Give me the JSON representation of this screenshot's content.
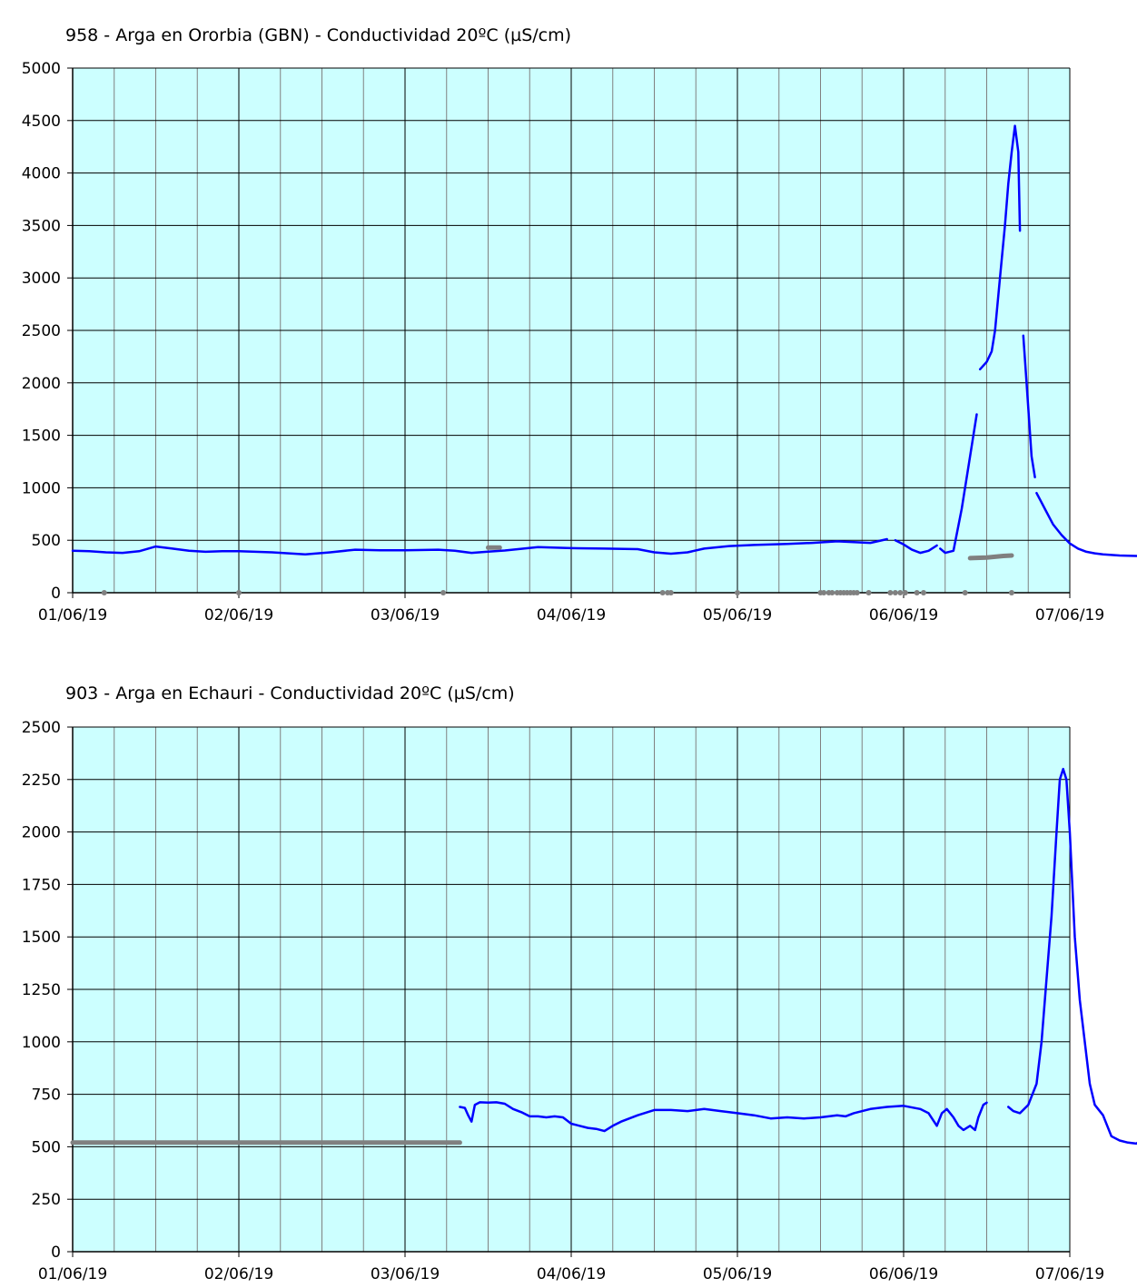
{
  "chart_data": [
    {
      "type": "line",
      "title": "958 - Arga en Ororbia (GBN) - Conductividad 20ºC (µS/cm)",
      "xlabel": "",
      "ylabel": "",
      "ylim": [
        0,
        5000
      ],
      "yticks": [
        "0",
        "500",
        "1000",
        "1500",
        "2000",
        "2500",
        "3000",
        "3500",
        "4000",
        "4500",
        "5000"
      ],
      "xlim": [
        "01/06/19",
        "07/06/19"
      ],
      "xticks": [
        "01/06/19",
        "02/06/19",
        "03/06/19",
        "04/06/19",
        "05/06/19",
        "06/06/19",
        "07/06/19"
      ],
      "grid": true,
      "colors": {
        "background": "#ccffff",
        "main": "#0000ff",
        "flagged": "#808080",
        "grid_major": "#000000",
        "grid_minor": "#808080"
      },
      "series": [
        {
          "role": "main",
          "segments": [
            [
              [
                0.0,
                400
              ],
              [
                0.1,
                395
              ],
              [
                0.2,
                385
              ],
              [
                0.3,
                380
              ],
              [
                0.4,
                395
              ],
              [
                0.5,
                440
              ],
              [
                0.6,
                420
              ],
              [
                0.7,
                400
              ],
              [
                0.8,
                390
              ],
              [
                0.9,
                395
              ],
              [
                1.0,
                395
              ],
              [
                1.2,
                385
              ],
              [
                1.4,
                365
              ],
              [
                1.55,
                385
              ],
              [
                1.7,
                410
              ],
              [
                1.85,
                405
              ],
              [
                2.0,
                405
              ],
              [
                2.2,
                410
              ],
              [
                2.3,
                400
              ],
              [
                2.4,
                380
              ],
              [
                2.5,
                392
              ],
              [
                2.6,
                402
              ],
              [
                2.8,
                435
              ],
              [
                3.0,
                425
              ],
              [
                3.2,
                420
              ],
              [
                3.4,
                415
              ],
              [
                3.5,
                385
              ],
              [
                3.6,
                372
              ],
              [
                3.7,
                385
              ],
              [
                3.8,
                420
              ],
              [
                3.95,
                445
              ],
              [
                4.1,
                455
              ],
              [
                4.3,
                465
              ],
              [
                4.45,
                475
              ],
              [
                4.6,
                490
              ],
              [
                4.8,
                475
              ],
              [
                4.9,
                510
              ]
            ],
            [
              [
                4.95,
                500
              ],
              [
                5.0,
                460
              ],
              [
                5.05,
                410
              ],
              [
                5.1,
                380
              ],
              [
                5.15,
                400
              ],
              [
                5.2,
                450
              ]
            ],
            [
              [
                5.22,
                420
              ],
              [
                5.25,
                380
              ],
              [
                5.3,
                400
              ],
              [
                5.35,
                800
              ],
              [
                5.4,
                1300
              ],
              [
                5.44,
                1700
              ]
            ],
            [
              [
                5.46,
                2130
              ],
              [
                5.5,
                2200
              ],
              [
                5.53,
                2300
              ],
              [
                5.55,
                2500
              ],
              [
                5.58,
                3000
              ],
              [
                5.61,
                3500
              ],
              [
                5.63,
                3900
              ],
              [
                5.65,
                4200
              ],
              [
                5.67,
                4450
              ],
              [
                5.69,
                4200
              ],
              [
                5.7,
                3450
              ]
            ],
            [
              [
                5.72,
                2450
              ],
              [
                5.74,
                2000
              ],
              [
                5.77,
                1300
              ],
              [
                5.79,
                1100
              ]
            ],
            [
              [
                5.8,
                950
              ],
              [
                5.85,
                800
              ],
              [
                5.9,
                650
              ],
              [
                5.95,
                550
              ],
              [
                6.0,
                470
              ],
              [
                6.05,
                420
              ],
              [
                6.1,
                390
              ],
              [
                6.15,
                375
              ],
              [
                6.2,
                365
              ],
              [
                6.3,
                355
              ],
              [
                6.4,
                350
              ],
              [
                6.45,
                345
              ]
            ]
          ]
        },
        {
          "role": "flagged",
          "segments": [
            [
              [
                2.5,
                430
              ],
              [
                2.57,
                430
              ]
            ],
            [
              [
                5.4,
                330
              ],
              [
                5.5,
                335
              ],
              [
                5.6,
                350
              ],
              [
                5.65,
                355
              ]
            ]
          ],
          "points": [
            [
              0.19,
              0
            ],
            [
              1.0,
              0
            ],
            [
              2.23,
              0
            ],
            [
              3.55,
              0
            ],
            [
              3.58,
              0
            ],
            [
              3.6,
              0
            ],
            [
              4.0,
              0
            ],
            [
              4.5,
              0
            ],
            [
              4.52,
              0
            ],
            [
              4.55,
              0
            ],
            [
              4.57,
              0
            ],
            [
              4.6,
              0
            ],
            [
              4.62,
              0
            ],
            [
              4.64,
              0
            ],
            [
              4.66,
              0
            ],
            [
              4.68,
              0
            ],
            [
              4.7,
              0
            ],
            [
              4.72,
              0
            ],
            [
              4.79,
              0
            ],
            [
              4.92,
              0
            ],
            [
              4.95,
              0
            ],
            [
              4.98,
              0
            ],
            [
              5.01,
              0
            ],
            [
              5.08,
              0
            ],
            [
              5.12,
              0
            ],
            [
              5.37,
              0
            ],
            [
              5.65,
              0
            ]
          ]
        }
      ]
    },
    {
      "type": "line",
      "title": "903 - Arga en Echauri - Conductividad 20ºC (µS/cm)",
      "xlabel": "",
      "ylabel": "",
      "ylim": [
        0,
        2500
      ],
      "yticks": [
        "0",
        "250",
        "500",
        "750",
        "1000",
        "1250",
        "1500",
        "1750",
        "2000",
        "2250",
        "2500"
      ],
      "xlim": [
        "01/06/19",
        "07/06/19"
      ],
      "xticks": [
        "01/06/19",
        "02/06/19",
        "03/06/19",
        "04/06/19",
        "05/06/19",
        "06/06/19",
        "07/06/19"
      ],
      "grid": true,
      "colors": {
        "background": "#ccffff",
        "main": "#0000ff",
        "flagged": "#808080",
        "recent": "#ff0000",
        "grid_major": "#000000",
        "grid_minor": "#808080"
      },
      "series": [
        {
          "role": "flagged",
          "segments": [
            [
              [
                0.0,
                520
              ],
              [
                2.33,
                520
              ]
            ]
          ]
        },
        {
          "role": "main",
          "segments": [
            [
              [
                2.33,
                690
              ],
              [
                2.36,
                685
              ],
              [
                2.38,
                650
              ],
              [
                2.4,
                620
              ],
              [
                2.42,
                700
              ],
              [
                2.45,
                712
              ],
              [
                2.5,
                710
              ],
              [
                2.55,
                712
              ],
              [
                2.6,
                705
              ],
              [
                2.65,
                680
              ],
              [
                2.7,
                665
              ],
              [
                2.75,
                645
              ],
              [
                2.8,
                645
              ],
              [
                2.85,
                640
              ],
              [
                2.9,
                645
              ],
              [
                2.95,
                640
              ],
              [
                3.0,
                610
              ],
              [
                3.05,
                600
              ],
              [
                3.1,
                590
              ],
              [
                3.15,
                585
              ],
              [
                3.2,
                575
              ],
              [
                3.25,
                600
              ],
              [
                3.3,
                620
              ],
              [
                3.4,
                650
              ],
              [
                3.5,
                675
              ],
              [
                3.6,
                675
              ],
              [
                3.7,
                670
              ],
              [
                3.8,
                680
              ],
              [
                3.9,
                670
              ],
              [
                4.0,
                660
              ],
              [
                4.1,
                650
              ],
              [
                4.2,
                635
              ],
              [
                4.3,
                640
              ],
              [
                4.4,
                635
              ],
              [
                4.5,
                640
              ],
              [
                4.6,
                650
              ],
              [
                4.65,
                645
              ],
              [
                4.7,
                660
              ],
              [
                4.8,
                680
              ],
              [
                4.9,
                690
              ],
              [
                5.0,
                695
              ],
              [
                5.1,
                680
              ],
              [
                5.15,
                660
              ],
              [
                5.2,
                600
              ],
              [
                5.23,
                660
              ],
              [
                5.26,
                680
              ],
              [
                5.3,
                640
              ],
              [
                5.33,
                600
              ],
              [
                5.36,
                580
              ],
              [
                5.4,
                600
              ],
              [
                5.43,
                580
              ],
              [
                5.45,
                640
              ],
              [
                5.48,
                700
              ],
              [
                5.5,
                710
              ]
            ],
            [
              [
                5.63,
                690
              ],
              [
                5.66,
                670
              ],
              [
                5.7,
                660
              ],
              [
                5.75,
                700
              ],
              [
                5.8,
                800
              ],
              [
                5.83,
                1000
              ],
              [
                5.86,
                1300
              ],
              [
                5.89,
                1600
              ],
              [
                5.92,
                2000
              ],
              [
                5.94,
                2250
              ],
              [
                5.96,
                2300
              ],
              [
                5.98,
                2250
              ],
              [
                6.0,
                2000
              ],
              [
                6.03,
                1500
              ],
              [
                6.06,
                1200
              ],
              [
                6.09,
                1000
              ],
              [
                6.12,
                800
              ],
              [
                6.15,
                700
              ],
              [
                6.2,
                650
              ],
              [
                6.25,
                550
              ],
              [
                6.3,
                530
              ],
              [
                6.35,
                520
              ],
              [
                6.4,
                515
              ],
              [
                6.43,
                530
              ],
              [
                6.47,
                610
              ],
              [
                6.52,
                630
              ],
              [
                6.6,
                640
              ],
              [
                6.65,
                630
              ],
              [
                6.7,
                640
              ],
              [
                6.8,
                625
              ],
              [
                6.9,
                620
              ],
              [
                7.0,
                610
              ],
              [
                7.1,
                608
              ]
            ]
          ]
        },
        {
          "role": "recent",
          "segments": [
            [
              [
                7.1,
                612
              ],
              [
                7.15,
                612
              ]
            ]
          ]
        }
      ]
    }
  ]
}
